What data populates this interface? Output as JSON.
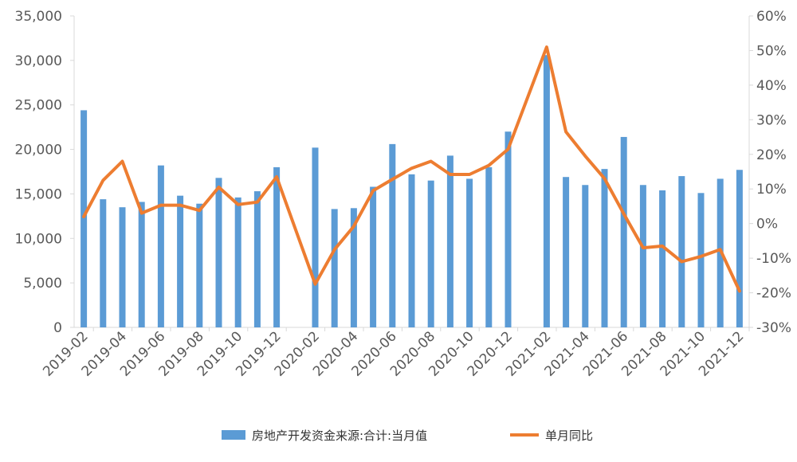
{
  "chart_data": {
    "type": "bar",
    "x": [
      "2019-02",
      "2019-03",
      "2019-04",
      "2019-05",
      "2019-06",
      "2019-07",
      "2019-08",
      "2019-09",
      "2019-10",
      "2019-11",
      "2019-12",
      "2020-01",
      "2020-02",
      "2020-03",
      "2020-04",
      "2020-05",
      "2020-06",
      "2020-07",
      "2020-08",
      "2020-09",
      "2020-10",
      "2020-11",
      "2020-12",
      "2021-01",
      "2021-02",
      "2021-03",
      "2021-04",
      "2021-05",
      "2021-06",
      "2021-07",
      "2021-08",
      "2021-09",
      "2021-10",
      "2021-11",
      "2021-12"
    ],
    "x_tick_labels": [
      "2019-02",
      "2019-04",
      "2019-06",
      "2019-08",
      "2019-10",
      "2019-12",
      "2020-02",
      "2020-04",
      "2020-06",
      "2020-08",
      "2020-10",
      "2020-12",
      "2021-02",
      "2021-04",
      "2021-06",
      "2021-08",
      "2021-10",
      "2021-12"
    ],
    "series": [
      {
        "name": "房地产开发资金来源:合计:当月值",
        "kind": "bar",
        "axis": "left",
        "color": "#5B9BD5",
        "values": [
          24400,
          14400,
          13500,
          14100,
          18200,
          14800,
          13900,
          16800,
          14600,
          15300,
          18000,
          null,
          20200,
          13300,
          13400,
          15800,
          20600,
          17200,
          16500,
          19300,
          16700,
          18000,
          22000,
          null,
          30600,
          16900,
          16000,
          17800,
          21400,
          16000,
          15400,
          17000,
          15100,
          16700,
          17700
        ]
      },
      {
        "name": "单月同比",
        "kind": "line",
        "axis": "right",
        "color": "#ED7D31",
        "values": [
          2.0,
          12.5,
          18.0,
          3.0,
          5.3,
          5.3,
          3.8,
          10.5,
          5.5,
          6.2,
          13.5,
          null,
          -17.5,
          -7.5,
          -0.8,
          9.5,
          12.8,
          16.0,
          18.0,
          14.2,
          14.2,
          16.8,
          21.5,
          null,
          51.0,
          26.5,
          19.5,
          13.0,
          2.8,
          -7.0,
          -6.5,
          -11.0,
          -9.5,
          -7.5,
          -19.5
        ]
      }
    ],
    "left_axis": {
      "ylim": [
        0,
        35000
      ],
      "ticks": [
        "0",
        "5,000",
        "10,000",
        "15,000",
        "20,000",
        "25,000",
        "30,000",
        "35,000"
      ]
    },
    "right_axis": {
      "ylim": [
        -30,
        60
      ],
      "ticks": [
        "-30%",
        "-20%",
        "-10%",
        "0%",
        "10%",
        "20%",
        "30%",
        "40%",
        "50%",
        "60%"
      ]
    },
    "grid": false,
    "legend_position": "bottom",
    "colors": {
      "bar": "#5B9BD5",
      "line": "#ED7D31",
      "axis": "#D9D9D9",
      "text": "#595959"
    }
  }
}
